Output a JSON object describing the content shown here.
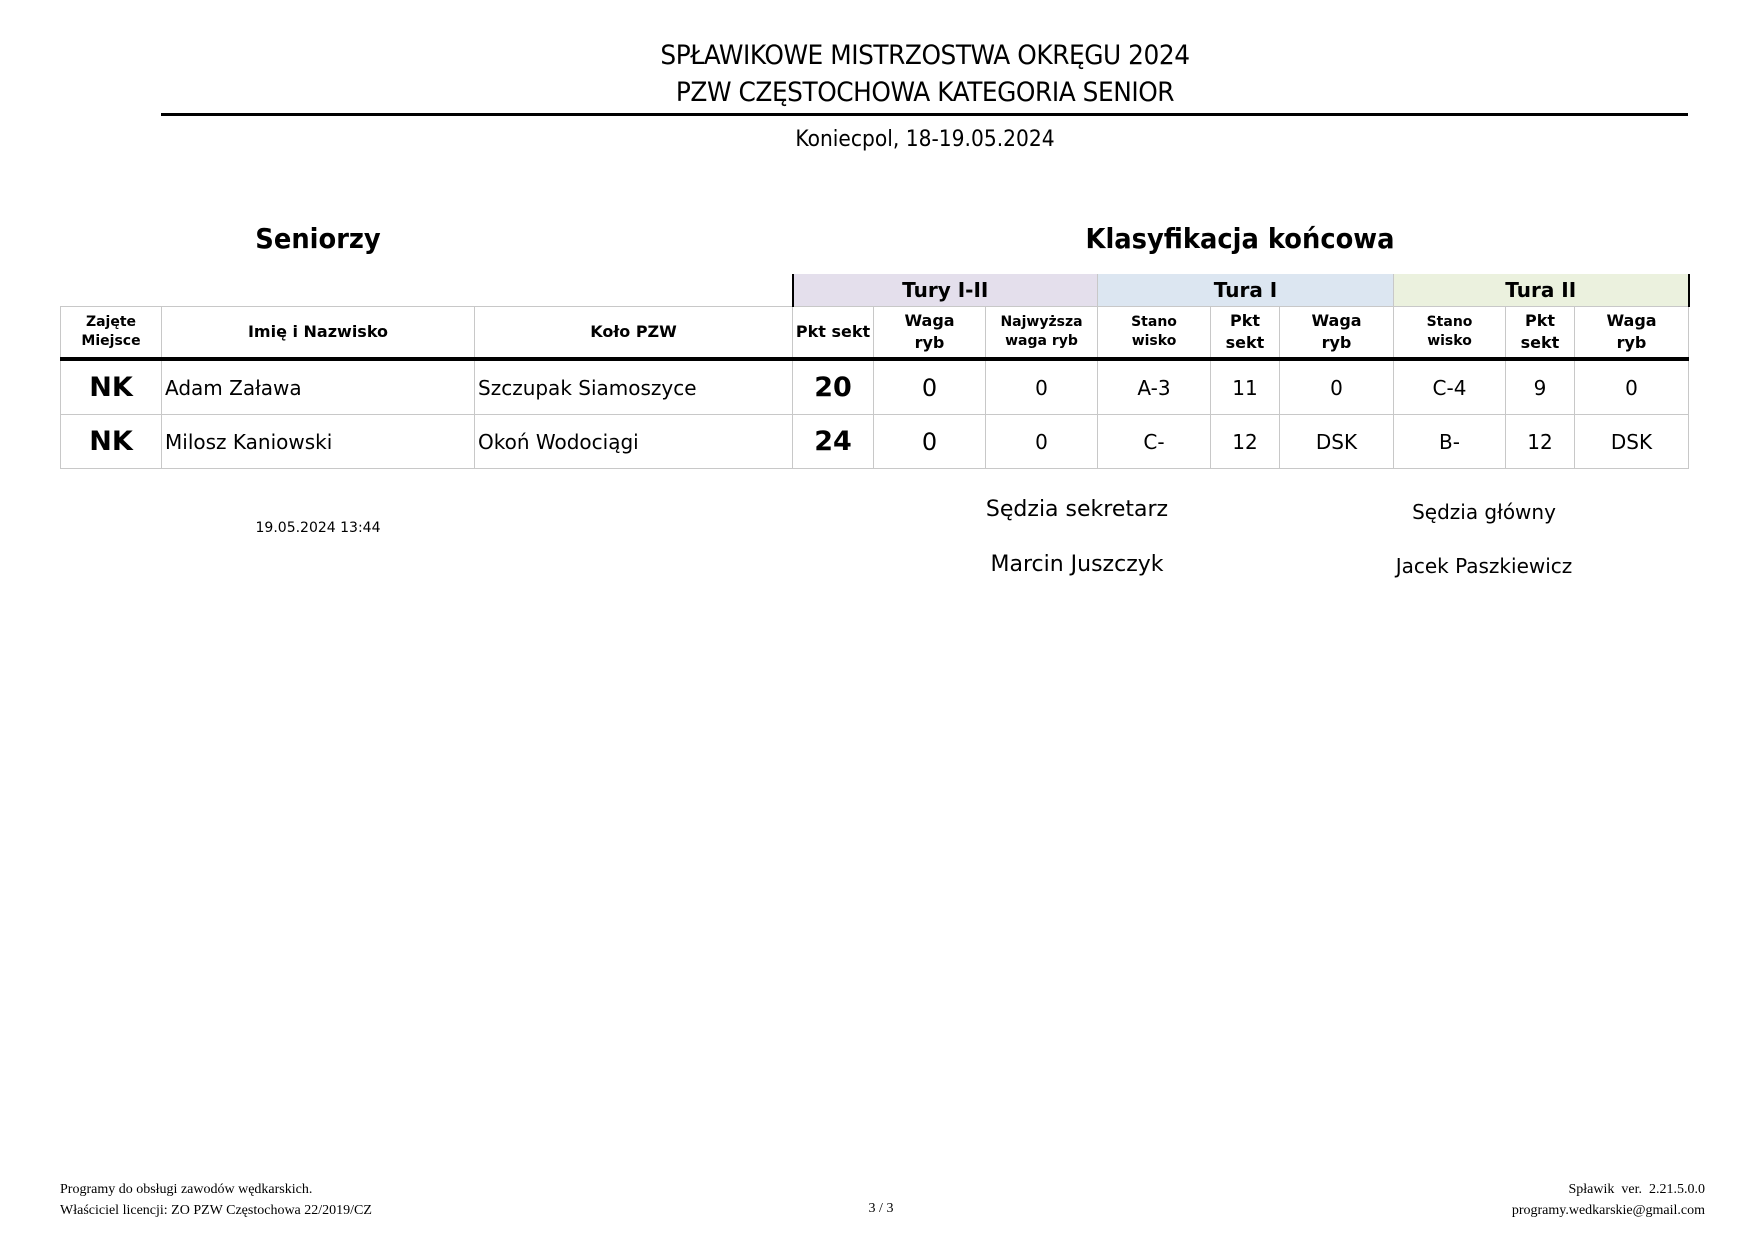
{
  "header": {
    "title_line1": "SPŁAWIKOWE MISTRZOSTWA OKRĘGU 2024",
    "title_line2": "PZW CZĘSTOCHOWA KATEGORIA SENIOR",
    "place_date": "Koniecpol, 18-19.05.2024"
  },
  "section": {
    "category": "Seniorzy",
    "classification": "Klasyfikacja końcowa"
  },
  "table": {
    "groups": {
      "tury": "Tury I-II",
      "tura1": "Tura I",
      "tura2": "Tura II"
    },
    "group_colors": {
      "tury": "#e4dfec",
      "tura1": "#dce6f1",
      "tura2": "#ebf1de"
    },
    "columns": {
      "place": "Zajęte Miejsce",
      "name": "Imię i Nazwisko",
      "club": "Koło PZW",
      "pkt": "Pkt sekt",
      "waga": "Waga ryb",
      "najw": "Najwyższa waga ryb",
      "stanowisko": "Stano wisko"
    },
    "rows": [
      {
        "place": "NK",
        "name": "Adam Zaława",
        "club": "Szczupak Siamoszyce",
        "pkt": "20",
        "waga": "0",
        "najw": "0",
        "t1_st": "A-3",
        "t1_pkt": "11",
        "t1_waga": "0",
        "t2_st": "C-4",
        "t2_pkt": "9",
        "t2_waga": "0"
      },
      {
        "place": "NK",
        "name": "Milosz Kaniowski",
        "club": "Okoń Wodociągi",
        "pkt": "24",
        "waga": "0",
        "najw": "0",
        "t1_st": "C-",
        "t1_pkt": "12",
        "t1_waga": "DSK",
        "t2_st": "B-",
        "t2_pkt": "12",
        "t2_waga": "DSK"
      }
    ]
  },
  "timestamp": "19.05.2024 13:44",
  "judges": {
    "secretary_label": "Sędzia sekretarz",
    "secretary_name": "Marcin Juszczyk",
    "chief_label": "Sędzia główny",
    "chief_name": "Jacek Paszkiewicz"
  },
  "footer": {
    "line1": "Programy do obsługi zawodów wędkarskich.",
    "line2": "Właściciel licencji: ZO PZW Częstochowa 22/2019/CZ",
    "page": "3 / 3",
    "version": "Spławik  ver.  2.21.5.0.0",
    "email": "programy.wedkarskie@gmail.com"
  }
}
